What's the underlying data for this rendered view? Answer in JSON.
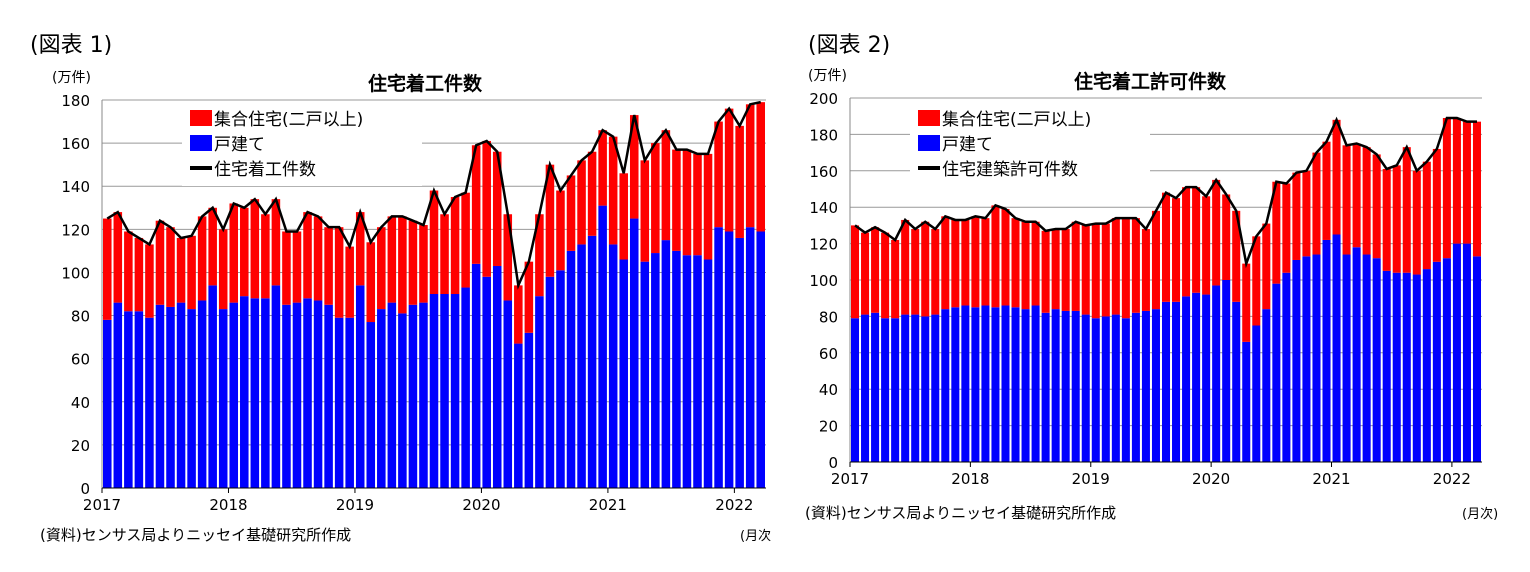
{
  "colors": {
    "multi": "#ff0000",
    "single": "#0000ff",
    "total": "#000000"
  },
  "chart_data": [
    {
      "type": "bar",
      "stacked": true,
      "fig_label": "(図表 1)",
      "title": "住宅着工件数",
      "unit": "(万件)",
      "xlabel": "(月次",
      "source": "(資料)センサス局よりニッセイ基礎研究所作成",
      "ylim": [
        0,
        180
      ],
      "yticks": [
        0,
        20,
        40,
        60,
        80,
        100,
        120,
        140,
        160,
        180
      ],
      "xticks": [
        "2017",
        "2018",
        "2019",
        "2020",
        "2021",
        "2022"
      ],
      "x_start": "2017-01",
      "x_end": "2022-03",
      "grid": true,
      "legend": "top-left",
      "series": [
        {
          "name": "集合住宅(二戸以上)",
          "role": "multi"
        },
        {
          "name": "戸建て",
          "role": "single",
          "values": [
            78,
            86,
            82,
            82,
            79,
            85,
            84,
            86,
            83,
            87,
            94,
            83,
            86,
            89,
            88,
            88,
            94,
            85,
            86,
            88,
            87,
            85,
            79,
            79,
            94,
            77,
            83,
            86,
            81,
            85,
            86,
            90,
            90,
            90,
            93,
            104,
            98,
            103,
            87,
            67,
            72,
            89,
            98,
            101,
            110,
            113,
            117,
            131,
            113,
            106,
            125,
            105,
            109,
            115,
            110,
            108,
            108,
            106,
            121,
            119,
            116,
            121,
            119
          ]
        },
        {
          "name": "住宅着工件数",
          "role": "total",
          "values": [
            125,
            128,
            119,
            116,
            113,
            124,
            121,
            116,
            117,
            126,
            130,
            120,
            132,
            130,
            134,
            127,
            134,
            119,
            119,
            128,
            126,
            121,
            121,
            112,
            128,
            114,
            121,
            126,
            126,
            124,
            122,
            138,
            127,
            135,
            137,
            159,
            161,
            156,
            127,
            94,
            105,
            127,
            150,
            138,
            145,
            152,
            156,
            166,
            163,
            146,
            173,
            152,
            160,
            166,
            157,
            157,
            155,
            155,
            170,
            176,
            168,
            178,
            179
          ]
        }
      ]
    },
    {
      "type": "bar",
      "stacked": true,
      "fig_label": "(図表 2)",
      "title": "住宅着工許可件数",
      "unit": "(万件)",
      "xlabel": "(月次)",
      "source": "(資料)センサス局よりニッセイ基礎研究所作成",
      "ylim": [
        0,
        200
      ],
      "yticks": [
        0,
        20,
        40,
        60,
        80,
        100,
        120,
        140,
        160,
        180,
        200
      ],
      "xticks": [
        "2017",
        "2018",
        "2019",
        "2020",
        "2021",
        "2022"
      ],
      "x_start": "2017-01",
      "x_end": "2022-03",
      "grid": true,
      "legend": "top-left",
      "series": [
        {
          "name": "集合住宅(二戸以上)",
          "role": "multi"
        },
        {
          "name": "戸建て",
          "role": "single",
          "values": [
            79,
            81,
            82,
            79,
            79,
            81,
            81,
            80,
            81,
            84,
            85,
            86,
            85,
            86,
            85,
            86,
            85,
            84,
            86,
            82,
            84,
            83,
            83,
            81,
            79,
            80,
            81,
            79,
            82,
            83,
            84,
            88,
            88,
            91,
            93,
            92,
            97,
            100,
            88,
            66,
            75,
            84,
            98,
            104,
            111,
            113,
            114,
            122,
            125,
            114,
            118,
            114,
            112,
            105,
            104,
            104,
            103,
            106,
            110,
            112,
            120,
            120,
            113
          ]
        },
        {
          "name": "住宅建築許可件数",
          "role": "total",
          "values": [
            130,
            126,
            129,
            126,
            122,
            133,
            128,
            132,
            128,
            135,
            133,
            133,
            135,
            134,
            141,
            139,
            134,
            132,
            132,
            127,
            128,
            128,
            132,
            130,
            131,
            131,
            134,
            134,
            134,
            128,
            138,
            148,
            145,
            151,
            151,
            146,
            155,
            147,
            138,
            109,
            124,
            131,
            154,
            153,
            159,
            160,
            170,
            176,
            188,
            174,
            175,
            173,
            169,
            161,
            163,
            173,
            160,
            165,
            172,
            189,
            189,
            187,
            187
          ]
        }
      ]
    }
  ]
}
